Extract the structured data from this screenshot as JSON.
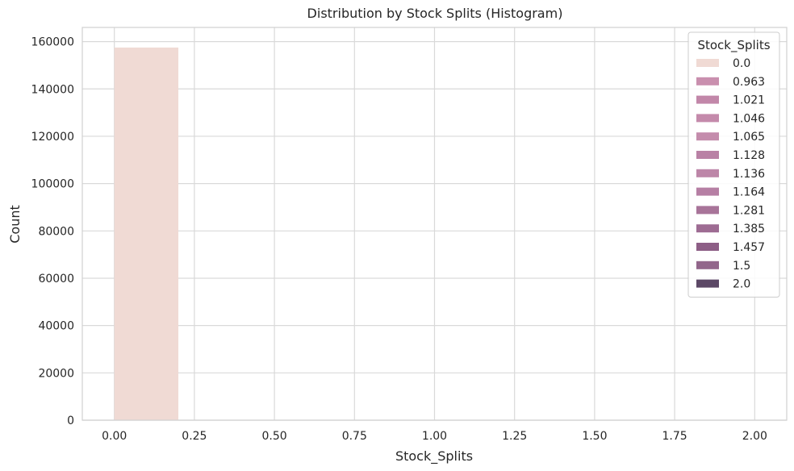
{
  "chart_data": {
    "type": "bar",
    "subtype": "histogram",
    "title": "Distribution by Stock Splits (Histogram)",
    "xlabel": "Stock_Splits",
    "ylabel": "Count",
    "xlim": [
      -0.1,
      2.1
    ],
    "ylim": [
      0,
      166000
    ],
    "xticks": [
      "0.00",
      "0.25",
      "0.50",
      "0.75",
      "1.00",
      "1.25",
      "1.50",
      "1.75",
      "2.00"
    ],
    "yticks": [
      "0",
      "20000",
      "40000",
      "60000",
      "80000",
      "100000",
      "120000",
      "140000",
      "160000"
    ],
    "grid": true,
    "legend": {
      "title": "Stock_Splits",
      "position": "top-right",
      "entries": [
        {
          "label": "0.0",
          "color": "#f0dad4"
        },
        {
          "label": "0.963",
          "color": "#c98fae"
        },
        {
          "label": "1.021",
          "color": "#c287a9"
        },
        {
          "label": "1.046",
          "color": "#c48aab"
        },
        {
          "label": "1.065",
          "color": "#c48cac"
        },
        {
          "label": "1.128",
          "color": "#b981a5"
        },
        {
          "label": "1.136",
          "color": "#bd86a8"
        },
        {
          "label": "1.164",
          "color": "#b67fa4"
        },
        {
          "label": "1.281",
          "color": "#a87499"
        },
        {
          "label": "1.385",
          "color": "#9e6c93"
        },
        {
          "label": "1.457",
          "color": "#8d5e86"
        },
        {
          "label": "1.5",
          "color": "#92668b"
        },
        {
          "label": "2.0",
          "color": "#5c4866"
        }
      ]
    },
    "bars": [
      {
        "x0": 0.0,
        "x1": 0.2,
        "value": 157500,
        "color": "#f0dad4"
      }
    ]
  }
}
